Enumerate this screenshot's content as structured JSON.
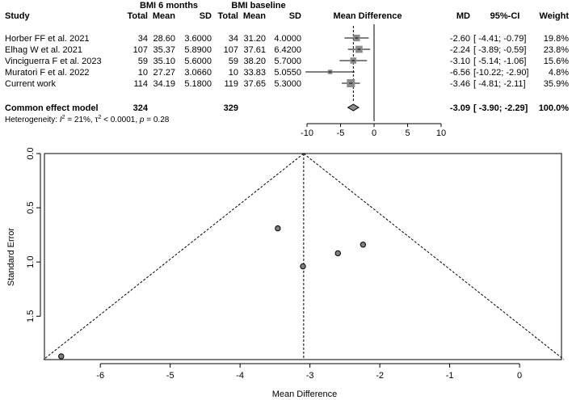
{
  "chart_data": [
    {
      "type": "table",
      "subtype": "forest-plot",
      "column_group_headers": [
        "BMI 6 months",
        "BMI baseline"
      ],
      "column_headers": [
        "Study",
        "Total",
        "Mean",
        "SD",
        "Total",
        "Mean",
        "SD",
        "Mean Difference",
        "MD",
        "95%-CI",
        "Weight"
      ],
      "rows": [
        {
          "study": "Horber FF et al. 2021",
          "total_6m": "34",
          "mean_6m": "28.60",
          "sd_6m": "3.6000",
          "total_base": "34",
          "mean_base": "31.20",
          "sd_base": "4.0000",
          "md_text": "-2.60",
          "ci_text": "[ -4.41; -0.79]",
          "weight_text": "19.8%",
          "md": -2.6,
          "lower": -4.41,
          "upper": -0.79,
          "weight": 19.8
        },
        {
          "study": "Elhag W et al. 2021",
          "total_6m": "107",
          "mean_6m": "35.37",
          "sd_6m": "5.8900",
          "total_base": "107",
          "mean_base": "37.61",
          "sd_base": "6.4200",
          "md_text": "-2.24",
          "ci_text": "[ -3.89; -0.59]",
          "weight_text": "23.8%",
          "md": -2.24,
          "lower": -3.89,
          "upper": -0.59,
          "weight": 23.8
        },
        {
          "study": "Vinciguerra F et al. 2023",
          "total_6m": "59",
          "mean_6m": "35.10",
          "sd_6m": "5.6000",
          "total_base": "59",
          "mean_base": "38.20",
          "sd_base": "5.7000",
          "md_text": "-3.10",
          "ci_text": "[ -5.14; -1.06]",
          "weight_text": "15.6%",
          "md": -3.1,
          "lower": -5.14,
          "upper": -1.06,
          "weight": 15.6
        },
        {
          "study": "Muratori F et al. 2022",
          "total_6m": "10",
          "mean_6m": "27.27",
          "sd_6m": "3.0660",
          "total_base": "10",
          "mean_base": "33.83",
          "sd_base": "5.0550",
          "md_text": "-6.56",
          "ci_text": "[-10.22; -2.90]",
          "weight_text": "4.8%",
          "md": -6.56,
          "lower": -10.22,
          "upper": -2.9,
          "weight": 4.8
        },
        {
          "study": "Current work",
          "total_6m": "114",
          "mean_6m": "34.19",
          "sd_6m": "5.1800",
          "total_base": "119",
          "mean_base": "37.65",
          "sd_base": "5.3000",
          "md_text": "-3.46",
          "ci_text": "[ -4.81; -2.11]",
          "weight_text": "35.9%",
          "md": -3.46,
          "lower": -4.81,
          "upper": -2.11,
          "weight": 35.9
        }
      ],
      "pooled": {
        "label": "Common effect model",
        "total_6m": "324",
        "total_base": "329",
        "md_text": "-3.09",
        "ci_text": "[ -3.90; -2.29]",
        "weight_text": "100.0%",
        "md": -3.09,
        "lower": -3.9,
        "upper": -2.29
      },
      "heterogeneity": {
        "prefix": "Heterogeneity: ",
        "i2_symbol": "I",
        "i2_sup": "2",
        "i2_value": " = 21%, ",
        "tau_symbol": "τ",
        "tau_sup": "2",
        "tau_value": " < 0.0001, ",
        "p_symbol": "p",
        "p_value": " = 0.28"
      },
      "axis": {
        "ticks": [
          -10,
          -5,
          0,
          5,
          10
        ],
        "tick_labels": [
          "-10",
          "-5",
          "0",
          "5",
          "10"
        ],
        "xlim": [
          -10,
          10
        ]
      }
    },
    {
      "type": "scatter",
      "subtype": "funnel-plot",
      "xlabel": "Mean Difference",
      "ylabel": "Standard Error",
      "xlim": [
        -6.8,
        0.6
      ],
      "ylim": [
        0.0,
        1.9
      ],
      "y_inverted": true,
      "x_ticks": [
        -6,
        -5,
        -4,
        -3,
        -2,
        -1,
        0
      ],
      "x_tick_labels": [
        "-6",
        "-5",
        "-4",
        "-3",
        "-2",
        "-1",
        "0"
      ],
      "y_ticks": [
        0.0,
        0.5,
        1.0,
        1.5
      ],
      "y_tick_labels": [
        "0.0",
        "0.5",
        "1.0",
        "1.5"
      ],
      "center_line": -3.09,
      "points": [
        {
          "x": -2.6,
          "y": 0.92
        },
        {
          "x": -2.24,
          "y": 0.84
        },
        {
          "x": -3.1,
          "y": 1.04
        },
        {
          "x": -6.56,
          "y": 1.87
        },
        {
          "x": -3.46,
          "y": 0.69
        }
      ]
    }
  ]
}
